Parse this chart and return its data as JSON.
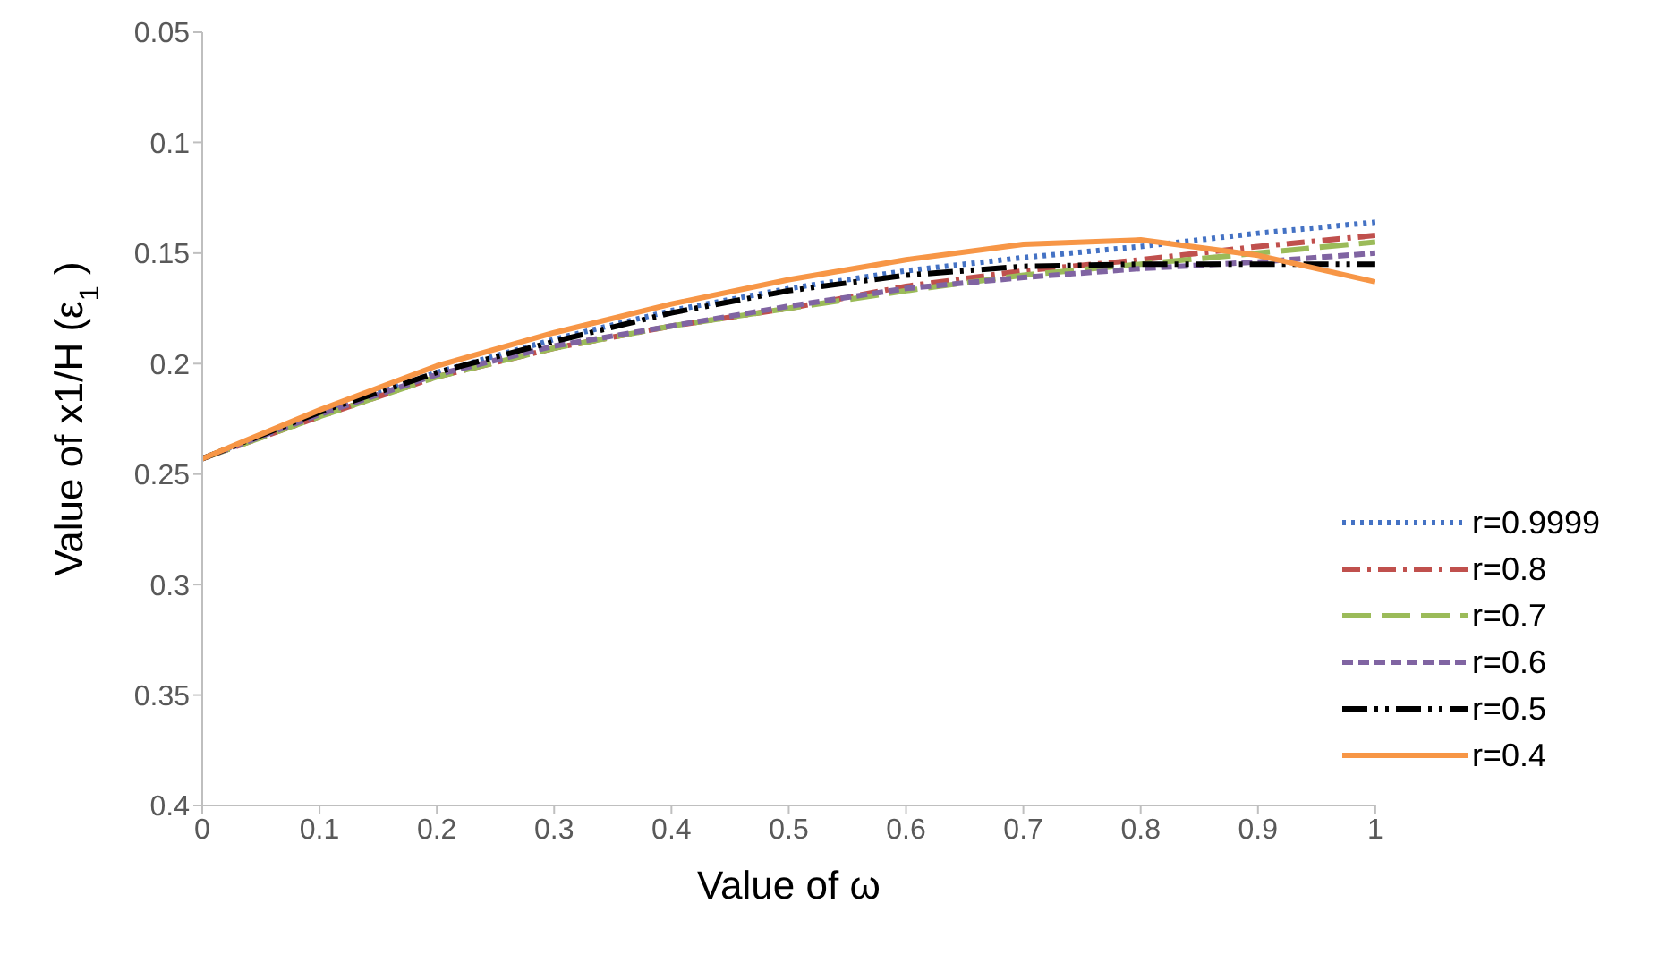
{
  "chart_data": {
    "type": "line",
    "xlabel": "Value of ω",
    "ylabel": "Value of x1/H (ε$_{1}$)",
    "x": [
      0,
      0.1,
      0.2,
      0.3,
      0.4,
      0.5,
      0.6,
      0.7,
      0.8,
      0.9,
      1
    ],
    "series": [
      {
        "name": "r=0.9999",
        "color": "#4472c4",
        "line_style": "dotted",
        "values": [
          0.243,
          0.222,
          0.204,
          0.189,
          0.176,
          0.166,
          0.158,
          0.152,
          0.147,
          0.141,
          0.136
        ]
      },
      {
        "name": "r=0.8",
        "color": "#c0504d",
        "line_style": "dashed",
        "values": [
          0.243,
          0.224,
          0.206,
          0.193,
          0.183,
          0.175,
          0.165,
          0.158,
          0.153,
          0.147,
          0.142
        ]
      },
      {
        "name": "r=0.7",
        "color": "#9bbb59",
        "line_style": "dashed",
        "values": [
          0.243,
          0.224,
          0.206,
          0.193,
          0.183,
          0.175,
          0.167,
          0.16,
          0.155,
          0.15,
          0.145
        ]
      },
      {
        "name": "r=0.6",
        "color": "#8064a2",
        "line_style": "dashed",
        "values": [
          0.243,
          0.223,
          0.205,
          0.192,
          0.183,
          0.174,
          0.166,
          0.161,
          0.157,
          0.154,
          0.15
        ]
      },
      {
        "name": "r=0.5",
        "color": "#000000",
        "line_style": "dashed",
        "values": [
          0.243,
          0.222,
          0.204,
          0.19,
          0.177,
          0.167,
          0.16,
          0.156,
          0.155,
          0.155,
          0.155
        ]
      },
      {
        "name": "r=0.4",
        "color": "#f79646",
        "line_style": "solid",
        "values": [
          0.243,
          0.221,
          0.201,
          0.186,
          0.173,
          0.162,
          0.153,
          0.146,
          0.144,
          0.151,
          0.163
        ]
      }
    ],
    "xlim": [
      0,
      1
    ],
    "xticks": [
      0,
      0.1,
      0.2,
      0.3,
      0.4,
      0.5,
      0.6,
      0.7,
      0.8,
      0.9,
      1
    ],
    "ylim": [
      0.4,
      0.05
    ],
    "yticks": [
      0.05,
      0.1,
      0.15,
      0.2,
      0.25,
      0.3,
      0.35,
      0.4
    ],
    "grid": false,
    "legend": "bottom right",
    "marker": "none"
  }
}
